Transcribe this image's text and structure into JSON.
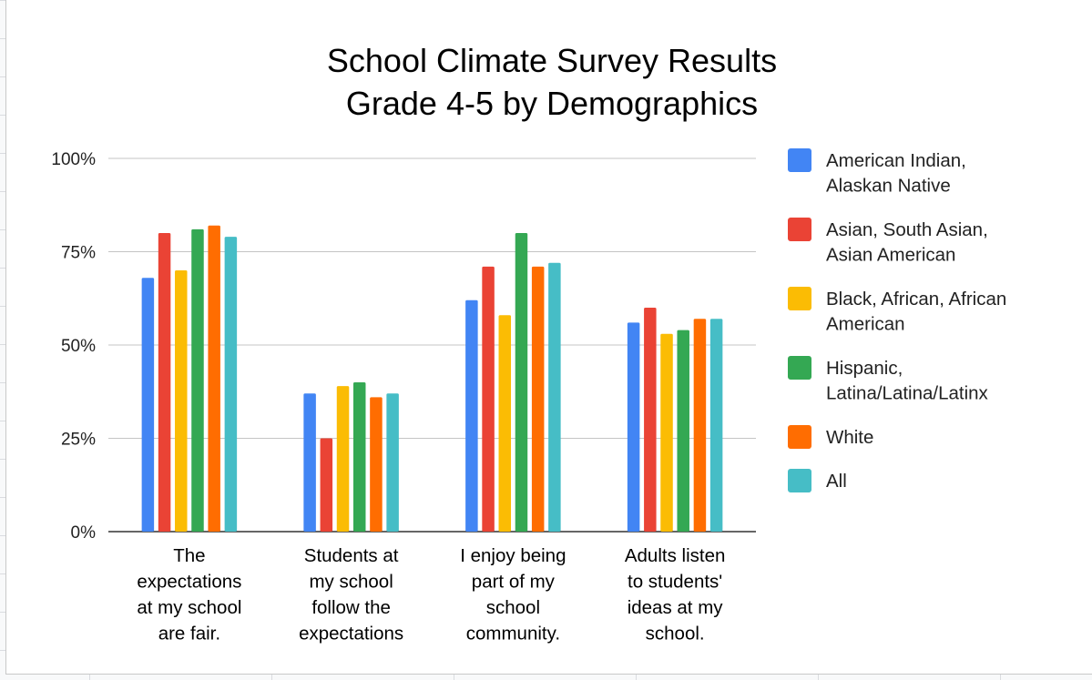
{
  "chart_data": {
    "type": "bar",
    "title": [
      "School Climate Survey Results",
      "Grade 4-5 by Demographics"
    ],
    "xlabel": "",
    "ylabel": "",
    "ylim": [
      0,
      100
    ],
    "yticks": [
      "100%",
      "75%",
      "50%",
      "25%",
      "0%"
    ],
    "ytick_values": [
      100,
      75,
      50,
      25,
      0
    ],
    "grid": true,
    "legend_position": "right",
    "categories": [
      [
        "The",
        "expectations",
        "at my school",
        "are fair."
      ],
      [
        "Students at",
        "my school",
        "follow the",
        "expectations"
      ],
      [
        "I enjoy being",
        "part of my",
        "school",
        "community."
      ],
      [
        "Adults listen",
        "to students'",
        "ideas at my",
        "school."
      ]
    ],
    "series": [
      {
        "name": [
          "American Indian,",
          "Alaskan Native"
        ],
        "color": "#4285f4",
        "values": [
          68,
          37,
          62,
          56
        ]
      },
      {
        "name": [
          "Asian, South Asian,",
          "Asian American"
        ],
        "color": "#ea4335",
        "values": [
          80,
          25,
          71,
          60
        ]
      },
      {
        "name": [
          "Black, African, African",
          "American"
        ],
        "color": "#fbbc04",
        "values": [
          70,
          39,
          58,
          53
        ]
      },
      {
        "name": [
          "Hispanic,",
          "Latina/Latina/Latinx"
        ],
        "color": "#34a853",
        "values": [
          81,
          40,
          80,
          54
        ]
      },
      {
        "name": [
          "White"
        ],
        "color": "#ff6d01",
        "values": [
          82,
          36,
          71,
          57
        ]
      },
      {
        "name": [
          "All"
        ],
        "color": "#46bdc6",
        "values": [
          79,
          37,
          72,
          57
        ]
      }
    ]
  }
}
